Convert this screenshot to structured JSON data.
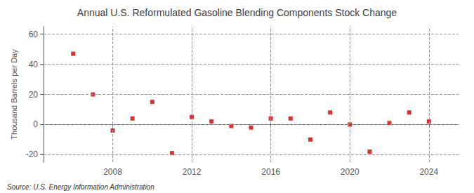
{
  "chart_data": {
    "type": "scatter",
    "title": "Annual U.S. Reformulated Gasoline Blending Components Stock Change",
    "ylabel": "Thousand Barrels per Day",
    "annotations": [
      "Source: U.S. Energy Information Administration"
    ],
    "x": [
      2006,
      2007,
      2008,
      2009,
      2010,
      2011,
      2012,
      2013,
      2014,
      2015,
      2016,
      2017,
      2018,
      2019,
      2020,
      2021,
      2022,
      2023,
      2024
    ],
    "values": [
      47,
      20,
      -4,
      4,
      15,
      -19,
      5,
      2,
      -1,
      -2,
      4,
      4,
      -10,
      8,
      0,
      -18,
      1,
      8,
      2
    ],
    "color": "#CC0000",
    "marker": "square",
    "xlim": [
      2004.5,
      2025.5
    ],
    "xticks": [
      2008,
      2012,
      2016,
      2020,
      2024
    ],
    "ylim": [
      -25,
      65
    ],
    "yticks": [
      -20,
      0,
      20,
      40,
      60
    ],
    "grid": true
  }
}
